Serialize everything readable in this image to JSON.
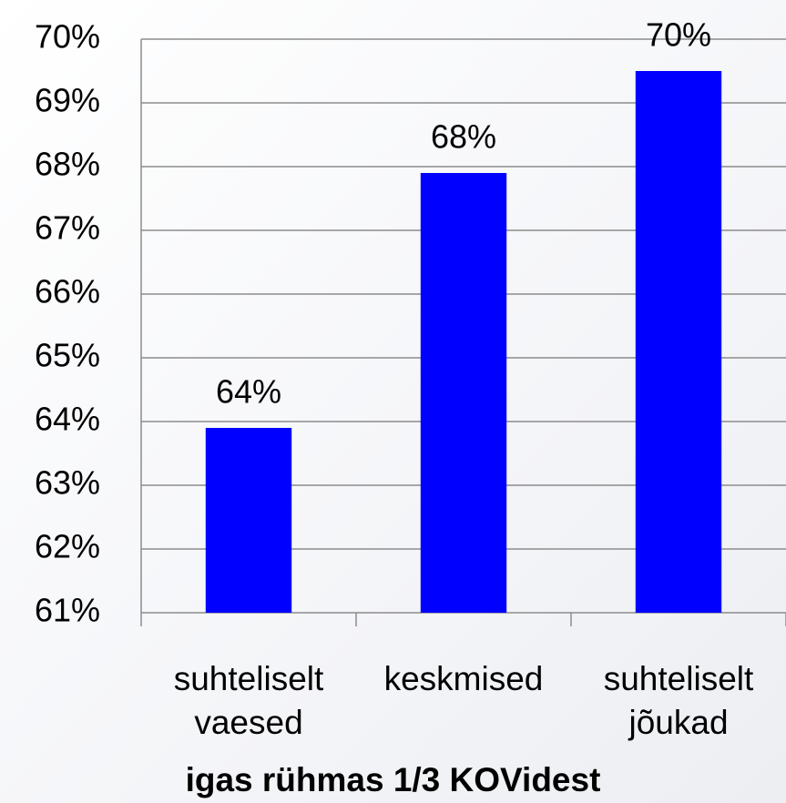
{
  "chart_data": {
    "type": "bar",
    "categories": [
      "suhteliselt vaesed",
      "keskmised",
      "suhteliselt jõukad"
    ],
    "values": [
      63.9,
      67.9,
      69.5
    ],
    "value_labels": [
      "64%",
      "68%",
      "70%"
    ],
    "color": "#0000ff",
    "x_label": "igas rühmas 1/3 KOVidest",
    "ylim": [
      61,
      70
    ],
    "yticks": [
      {
        "value": 61,
        "label": "61%"
      },
      {
        "value": 62,
        "label": "62%"
      },
      {
        "value": 63,
        "label": "63%"
      },
      {
        "value": 64,
        "label": "64%"
      },
      {
        "value": 65,
        "label": "65%"
      },
      {
        "value": 66,
        "label": "66%"
      },
      {
        "value": 67,
        "label": "67%"
      },
      {
        "value": 68,
        "label": "68%"
      },
      {
        "value": 69,
        "label": "69%"
      },
      {
        "value": 70,
        "label": "70%"
      }
    ],
    "grid": true
  }
}
